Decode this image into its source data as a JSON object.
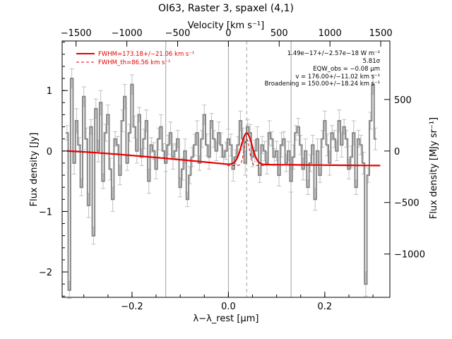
{
  "chart_data": {
    "type": "line",
    "title": "OI63, Raster 3, spaxel (4,1)",
    "xlabel": "λ−λ_rest [μm]",
    "ylabel": "Flux density [Jy]",
    "x2label": "Velocity [km s⁻¹]",
    "y2label": "Flux density [MJy sr⁻¹]",
    "xlim": [
      -0.345,
      0.335
    ],
    "ylim": [
      -2.42,
      1.82
    ],
    "x_ticks": [
      -0.2,
      0.0,
      0.2
    ],
    "y_ticks": [
      -2,
      -1,
      0,
      1
    ],
    "top_ticks": [
      -1500,
      -1000,
      -500,
      0,
      500,
      1000,
      1500
    ],
    "right_ticks": [
      -1000,
      -500,
      0,
      500
    ],
    "vlines_solid": [
      -0.13,
      0.0,
      0.13
    ],
    "vline_dashed": 0.038,
    "legend": {
      "fit_label": "FWHM=173.18+/−21.06 km s⁻¹",
      "th_label": "FWHM_th=86.56 km s⁻¹"
    },
    "annotations": [
      "1.49e−17+/−2.57e−18 W m⁻²",
      "5.81σ",
      "EQW_obs = −0.08 μm",
      "v = 176.00+/−11.02 km s⁻¹",
      "Broadening = 150.00+/−18.24 km s⁻¹"
    ],
    "series": [
      {
        "name": "Spectrum",
        "x": [
          -0.335,
          -0.33,
          -0.325,
          -0.32,
          -0.315,
          -0.31,
          -0.305,
          -0.3,
          -0.295,
          -0.29,
          -0.285,
          -0.28,
          -0.275,
          -0.27,
          -0.265,
          -0.26,
          -0.255,
          -0.25,
          -0.245,
          -0.24,
          -0.235,
          -0.23,
          -0.225,
          -0.22,
          -0.215,
          -0.21,
          -0.205,
          -0.2,
          -0.195,
          -0.19,
          -0.185,
          -0.18,
          -0.175,
          -0.17,
          -0.165,
          -0.16,
          -0.155,
          -0.15,
          -0.145,
          -0.14,
          -0.135,
          -0.13,
          -0.125,
          -0.12,
          -0.115,
          -0.11,
          -0.105,
          -0.1,
          -0.095,
          -0.09,
          -0.085,
          -0.08,
          -0.075,
          -0.07,
          -0.065,
          -0.06,
          -0.055,
          -0.05,
          -0.045,
          -0.04,
          -0.035,
          -0.03,
          -0.025,
          -0.02,
          -0.015,
          -0.01,
          -0.005,
          0.0,
          0.005,
          0.01,
          0.015,
          0.02,
          0.025,
          0.03,
          0.035,
          0.04,
          0.045,
          0.05,
          0.055,
          0.06,
          0.065,
          0.07,
          0.075,
          0.08,
          0.085,
          0.09,
          0.095,
          0.1,
          0.105,
          0.11,
          0.115,
          0.12,
          0.125,
          0.13,
          0.135,
          0.14,
          0.145,
          0.15,
          0.155,
          0.16,
          0.165,
          0.17,
          0.175,
          0.18,
          0.185,
          0.19,
          0.195,
          0.2,
          0.205,
          0.21,
          0.215,
          0.22,
          0.225,
          0.23,
          0.235,
          0.24,
          0.245,
          0.25,
          0.255,
          0.26,
          0.265,
          0.27,
          0.275,
          0.28,
          0.285,
          0.29,
          0.295,
          0.3,
          0.305
        ],
        "y": [
          0.3,
          -2.3,
          1.2,
          -0.2,
          0.5,
          0.1,
          -0.6,
          0.9,
          0.2,
          -0.9,
          0.4,
          -1.4,
          0.7,
          0.0,
          0.8,
          -0.5,
          0.3,
          0.6,
          -0.3,
          -0.8,
          0.2,
          0.1,
          -0.4,
          0.5,
          0.9,
          -0.2,
          0.3,
          1.1,
          0.4,
          0.0,
          0.6,
          -0.1,
          0.2,
          0.5,
          -0.5,
          0.1,
          0.0,
          -0.3,
          0.2,
          0.4,
          0.0,
          -0.2,
          0.1,
          0.3,
          -0.1,
          0.0,
          0.2,
          -0.6,
          -0.3,
          0.0,
          -0.8,
          -0.4,
          -0.1,
          0.1,
          0.3,
          -0.2,
          0.2,
          0.6,
          0.1,
          -0.1,
          0.5,
          0.2,
          0.0,
          0.3,
          0.1,
          -0.1,
          0.0,
          0.2,
          0.1,
          -0.3,
          -0.1,
          0.1,
          0.5,
          0.2,
          -0.2,
          0.4,
          0.3,
          -0.1,
          0.0,
          0.2,
          -0.4,
          0.1,
          0.0,
          -0.2,
          0.3,
          0.2,
          -0.1,
          0.0,
          -0.4,
          0.1,
          0.2,
          -0.2,
          0.0,
          -0.5,
          -0.1,
          0.3,
          0.4,
          0.1,
          -0.3,
          0.0,
          -0.6,
          -0.2,
          0.1,
          -0.8,
          0.0,
          -0.4,
          0.2,
          0.5,
          0.1,
          -0.2,
          0.3,
          0.2,
          0.0,
          0.5,
          0.1,
          0.4,
          0.2,
          -0.3,
          -0.1,
          0.3,
          -0.6,
          0.2,
          0.1,
          -0.2,
          -2.2,
          -0.4,
          0.5,
          1.1,
          0.2
        ]
      }
    ]
  },
  "colors": {
    "fit": "#e60000",
    "spectrum": "#888888",
    "errorbars": "#c0c0c0",
    "vlines": "#a0a0a0"
  }
}
